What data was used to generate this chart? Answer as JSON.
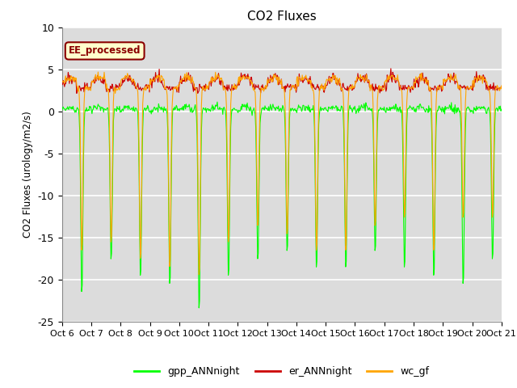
{
  "title": "CO2 Fluxes",
  "ylabel": "CO2 Fluxes (urology/m2/s)",
  "ylim": [
    -25,
    10
  ],
  "yticks": [
    -25,
    -20,
    -15,
    -10,
    -5,
    0,
    5,
    10
  ],
  "num_days": 15,
  "start_day": 6,
  "points_per_day": 48,
  "x_tick_labels": [
    "Oct 6",
    "Oct 7",
    "Oct 8",
    "Oct 9",
    "Oct 10",
    "Oct 11",
    "Oct 12",
    "Oct 13",
    "Oct 14",
    "Oct 15",
    "Oct 16",
    "Oct 17",
    "Oct 18",
    "Oct 19",
    "Oct 20",
    "Oct 21"
  ],
  "colors": {
    "gpp": "#00FF00",
    "er": "#CC0000",
    "wc": "#FFA500"
  },
  "annotation_text": "EE_processed",
  "annotation_color": "#8B0000",
  "annotation_bg": "#FFFFCC",
  "bg_color": "#DCDCDC",
  "legend_labels": [
    "gpp_ANNnight",
    "er_ANNnight",
    "wc_gf"
  ],
  "linewidth": 0.8
}
